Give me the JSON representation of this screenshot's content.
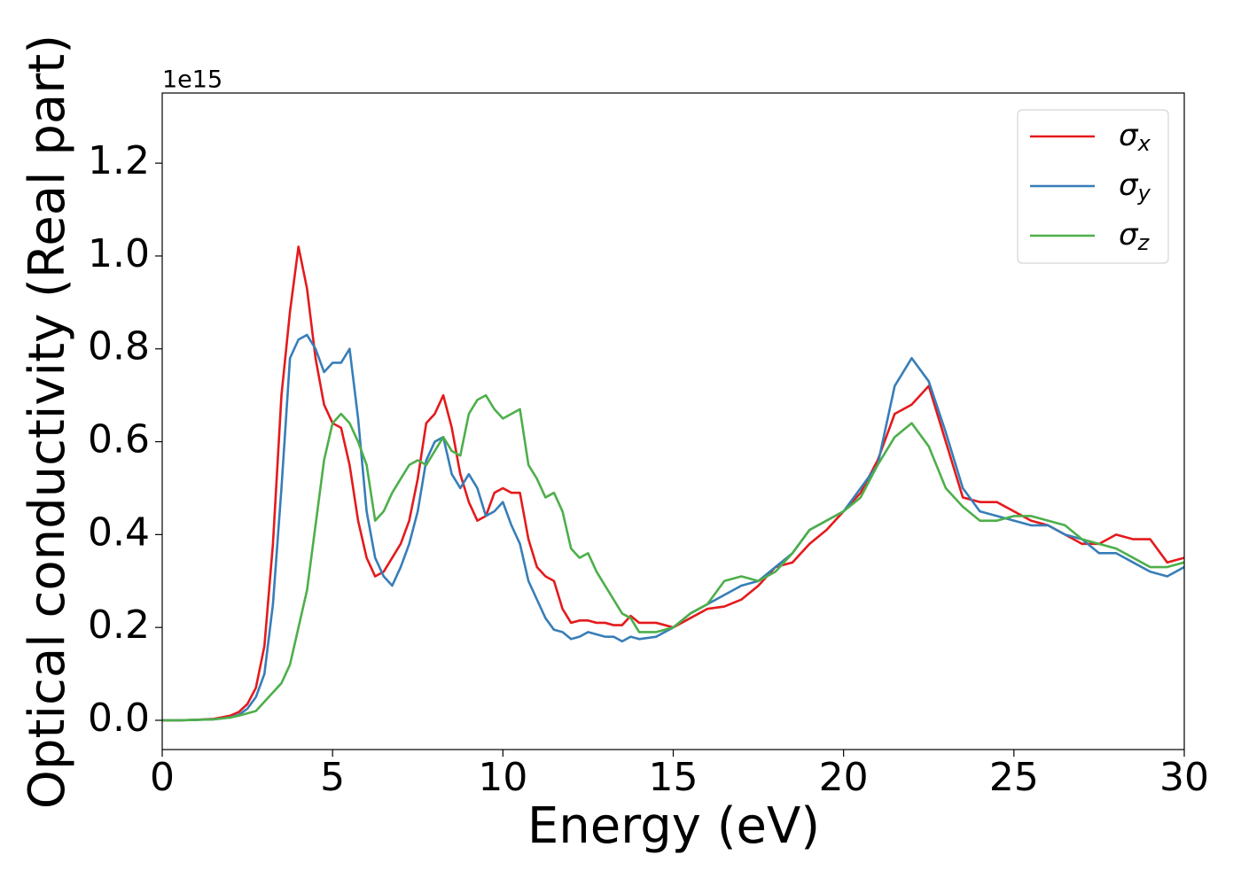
{
  "chart_data": {
    "type": "line",
    "xlabel": "Energy (eV)",
    "ylabel": "Optical conductivity (Real part)",
    "y_offset_label": "1e15",
    "x": [
      0,
      0.5,
      1,
      1.5,
      2,
      2.25,
      2.5,
      2.75,
      3,
      3.25,
      3.5,
      3.75,
      4,
      4.25,
      4.5,
      4.75,
      5,
      5.25,
      5.5,
      5.75,
      6,
      6.25,
      6.5,
      6.75,
      7,
      7.25,
      7.5,
      7.75,
      8,
      8.25,
      8.5,
      8.75,
      9,
      9.25,
      9.5,
      9.75,
      10,
      10.25,
      10.5,
      10.75,
      11,
      11.25,
      11.5,
      11.75,
      12,
      12.25,
      12.5,
      12.75,
      13,
      13.25,
      13.5,
      13.75,
      14,
      14.5,
      15,
      15.5,
      16,
      16.5,
      17,
      17.5,
      18,
      18.5,
      19,
      19.5,
      20,
      20.5,
      21,
      21.5,
      22,
      22.5,
      23,
      23.5,
      24,
      24.5,
      25,
      25.5,
      26,
      26.5,
      27,
      27.5,
      28,
      28.5,
      29,
      29.5,
      30
    ],
    "series": [
      {
        "name": "σx",
        "color": "#e41a1c",
        "values": [
          0,
          0,
          0.001,
          0.003,
          0.01,
          0.018,
          0.035,
          0.07,
          0.16,
          0.38,
          0.7,
          0.88,
          1.02,
          0.93,
          0.78,
          0.68,
          0.64,
          0.63,
          0.55,
          0.43,
          0.35,
          0.31,
          0.32,
          0.35,
          0.38,
          0.43,
          0.52,
          0.64,
          0.66,
          0.7,
          0.63,
          0.53,
          0.47,
          0.43,
          0.44,
          0.49,
          0.5,
          0.49,
          0.49,
          0.39,
          0.33,
          0.31,
          0.3,
          0.24,
          0.21,
          0.215,
          0.215,
          0.21,
          0.21,
          0.205,
          0.205,
          0.225,
          0.21,
          0.21,
          0.2,
          0.22,
          0.24,
          0.245,
          0.26,
          0.29,
          0.33,
          0.34,
          0.38,
          0.41,
          0.45,
          0.49,
          0.56,
          0.66,
          0.68,
          0.72,
          0.6,
          0.48,
          0.47,
          0.47,
          0.45,
          0.43,
          0.42,
          0.4,
          0.38,
          0.38,
          0.4,
          0.39,
          0.39,
          0.34,
          0.35
        ]
      },
      {
        "name": "σy",
        "color": "#377eb8",
        "values": [
          0,
          0,
          0.001,
          0.002,
          0.006,
          0.012,
          0.025,
          0.05,
          0.1,
          0.25,
          0.5,
          0.78,
          0.82,
          0.83,
          0.8,
          0.75,
          0.77,
          0.77,
          0.8,
          0.65,
          0.45,
          0.35,
          0.31,
          0.29,
          0.33,
          0.38,
          0.45,
          0.56,
          0.6,
          0.61,
          0.53,
          0.5,
          0.53,
          0.5,
          0.44,
          0.45,
          0.47,
          0.42,
          0.38,
          0.3,
          0.26,
          0.22,
          0.195,
          0.19,
          0.175,
          0.18,
          0.19,
          0.185,
          0.18,
          0.18,
          0.17,
          0.18,
          0.175,
          0.18,
          0.2,
          0.23,
          0.25,
          0.27,
          0.29,
          0.3,
          0.33,
          0.36,
          0.41,
          0.43,
          0.45,
          0.5,
          0.55,
          0.72,
          0.78,
          0.73,
          0.62,
          0.5,
          0.45,
          0.44,
          0.43,
          0.42,
          0.42,
          0.4,
          0.39,
          0.36,
          0.36,
          0.34,
          0.32,
          0.31,
          0.33
        ]
      },
      {
        "name": "σz",
        "color": "#4daf4a",
        "values": [
          0,
          0,
          0.001,
          0.002,
          0.006,
          0.01,
          0.015,
          0.02,
          0.04,
          0.06,
          0.08,
          0.12,
          0.2,
          0.28,
          0.42,
          0.56,
          0.64,
          0.66,
          0.64,
          0.6,
          0.55,
          0.43,
          0.45,
          0.49,
          0.52,
          0.55,
          0.56,
          0.55,
          0.58,
          0.61,
          0.58,
          0.57,
          0.66,
          0.69,
          0.7,
          0.67,
          0.65,
          0.66,
          0.67,
          0.55,
          0.52,
          0.48,
          0.49,
          0.45,
          0.37,
          0.35,
          0.36,
          0.32,
          0.29,
          0.26,
          0.23,
          0.22,
          0.19,
          0.19,
          0.2,
          0.23,
          0.25,
          0.3,
          0.31,
          0.3,
          0.32,
          0.36,
          0.41,
          0.43,
          0.45,
          0.48,
          0.55,
          0.61,
          0.64,
          0.59,
          0.5,
          0.46,
          0.43,
          0.43,
          0.44,
          0.44,
          0.43,
          0.42,
          0.39,
          0.38,
          0.37,
          0.35,
          0.33,
          0.33,
          0.34
        ]
      }
    ],
    "xlim": [
      0,
      30
    ],
    "xticks": [
      0,
      5,
      10,
      15,
      20,
      25,
      30
    ],
    "ylim": [
      -0.063,
      1.351
    ],
    "yticks": [
      {
        "value": 0,
        "label": "0.0"
      },
      0.2,
      0.4,
      0.6,
      0.8,
      {
        "value": 1,
        "label": "1.0"
      },
      1.2
    ],
    "grid": false,
    "legend": "upper right"
  }
}
